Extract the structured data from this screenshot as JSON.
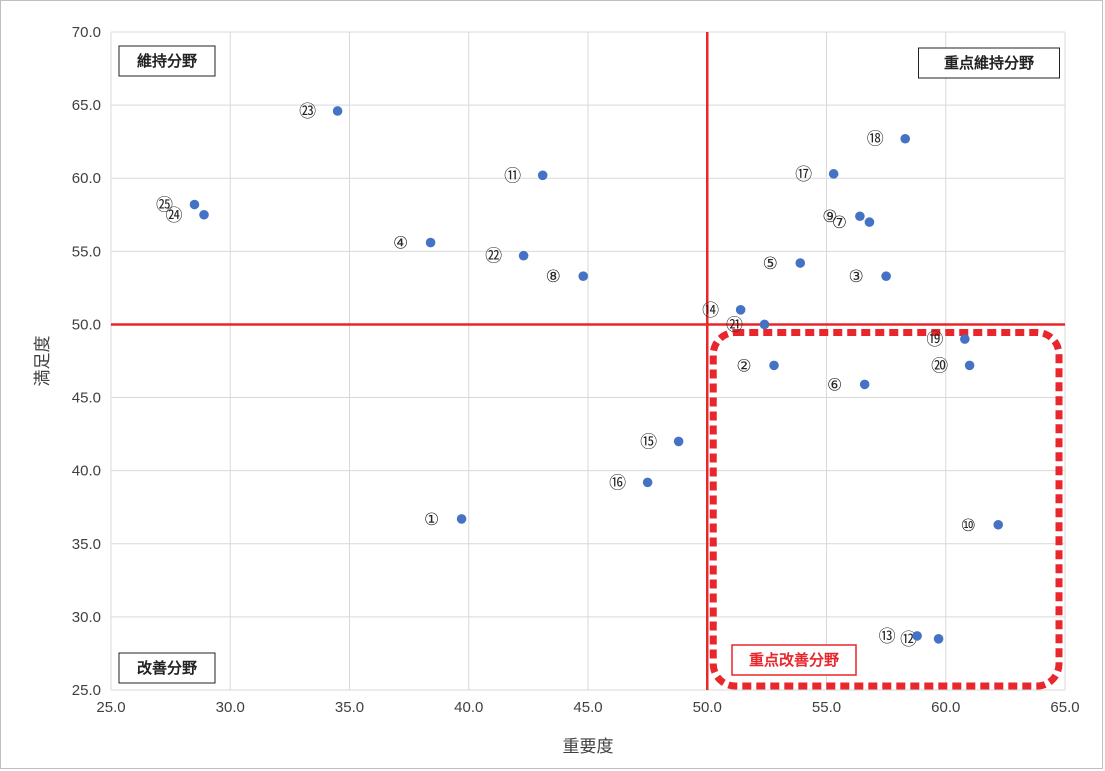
{
  "chart_data": {
    "type": "scatter",
    "xlabel": "重要度",
    "ylabel": "満足度",
    "xlim": [
      25.0,
      65.0
    ],
    "ylim": [
      25.0,
      70.0
    ],
    "xticks": [
      "25.0",
      "30.0",
      "35.0",
      "40.0",
      "45.0",
      "50.0",
      "55.0",
      "60.0",
      "65.0"
    ],
    "yticks": [
      "25.0",
      "30.0",
      "35.0",
      "40.0",
      "45.0",
      "50.0",
      "55.0",
      "60.0",
      "65.0",
      "70.0"
    ],
    "grid": true,
    "divider": {
      "x": 50.0,
      "y": 50.0,
      "color": "#e8262b"
    },
    "point_color": "#4472c4",
    "points": [
      {
        "label": "①",
        "x": 39.7,
        "y": 36.7
      },
      {
        "label": "②",
        "x": 52.8,
        "y": 47.2
      },
      {
        "label": "③",
        "x": 57.5,
        "y": 53.3
      },
      {
        "label": "④",
        "x": 38.4,
        "y": 55.6
      },
      {
        "label": "⑤",
        "x": 53.9,
        "y": 54.2
      },
      {
        "label": "⑥",
        "x": 56.6,
        "y": 45.9
      },
      {
        "label": "⑦",
        "x": 56.8,
        "y": 57.0
      },
      {
        "label": "⑧",
        "x": 44.8,
        "y": 53.3
      },
      {
        "label": "⑨",
        "x": 56.4,
        "y": 57.4
      },
      {
        "label": "⑩",
        "x": 62.2,
        "y": 36.3
      },
      {
        "label": "⑪",
        "x": 43.1,
        "y": 60.2
      },
      {
        "label": "⑫",
        "x": 59.7,
        "y": 28.5
      },
      {
        "label": "⑬",
        "x": 58.8,
        "y": 28.7
      },
      {
        "label": "⑭",
        "x": 51.4,
        "y": 51.0
      },
      {
        "label": "⑮",
        "x": 48.8,
        "y": 42.0
      },
      {
        "label": "⑯",
        "x": 47.5,
        "y": 39.2
      },
      {
        "label": "⑰",
        "x": 55.3,
        "y": 60.3
      },
      {
        "label": "⑱",
        "x": 58.3,
        "y": 62.7
      },
      {
        "label": "⑲",
        "x": 60.8,
        "y": 49.0
      },
      {
        "label": "⑳",
        "x": 61.0,
        "y": 47.2
      },
      {
        "label": "㉑",
        "x": 52.4,
        "y": 50.0
      },
      {
        "label": "㉒",
        "x": 42.3,
        "y": 54.7
      },
      {
        "label": "㉓",
        "x": 34.5,
        "y": 64.6
      },
      {
        "label": "㉔",
        "x": 28.9,
        "y": 57.5
      },
      {
        "label": "㉕",
        "x": 28.5,
        "y": 58.2
      }
    ],
    "quadrants": {
      "top_left": "維持分野",
      "top_right": "重点維持分野",
      "bottom_left": "改善分野",
      "bottom_right": "重点改善分野"
    },
    "highlight_color": "#e8262b"
  }
}
